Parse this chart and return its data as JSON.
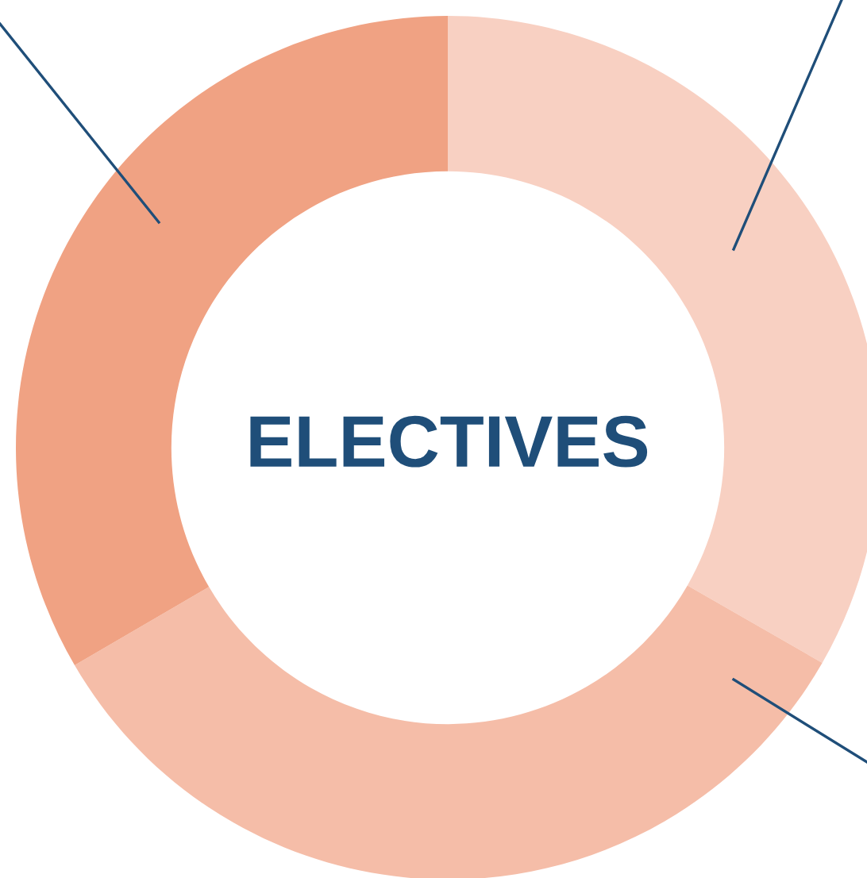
{
  "chart_data": {
    "type": "donut",
    "title": "ELECTIVES",
    "categories": [
      null,
      null,
      null
    ],
    "values": [
      33.3,
      33.3,
      33.4
    ],
    "colors": [
      "#f8d0c2",
      "#f5bda8",
      "#f0a283"
    ]
  }
}
